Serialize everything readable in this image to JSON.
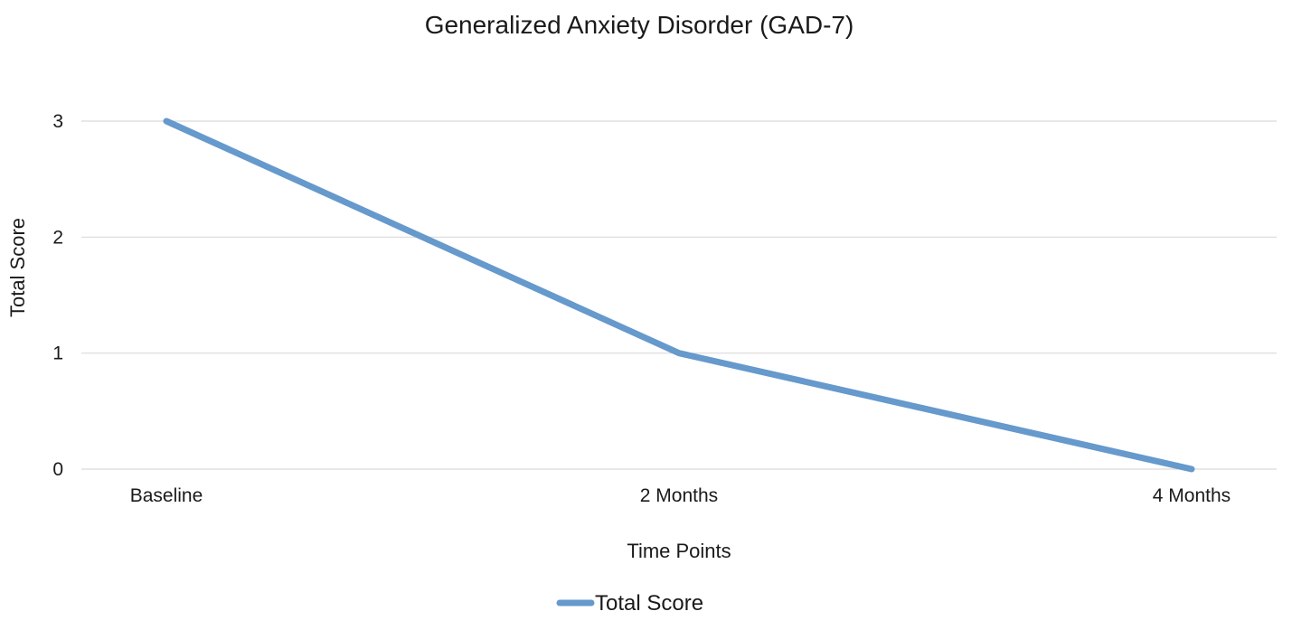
{
  "chart_data": {
    "type": "line",
    "title": "Generalized Anxiety Disorder (GAD-7)",
    "xlabel": "Time Points",
    "ylabel": "Total Score",
    "categories": [
      "Baseline",
      "2 Months",
      "4 Months"
    ],
    "series": [
      {
        "name": "Total Score",
        "values": [
          3,
          1,
          0
        ],
        "color": "#6699cc"
      }
    ],
    "ylim": [
      0,
      3
    ],
    "yticks": [
      0,
      1,
      2,
      3
    ],
    "grid": true,
    "legend_position": "bottom"
  }
}
